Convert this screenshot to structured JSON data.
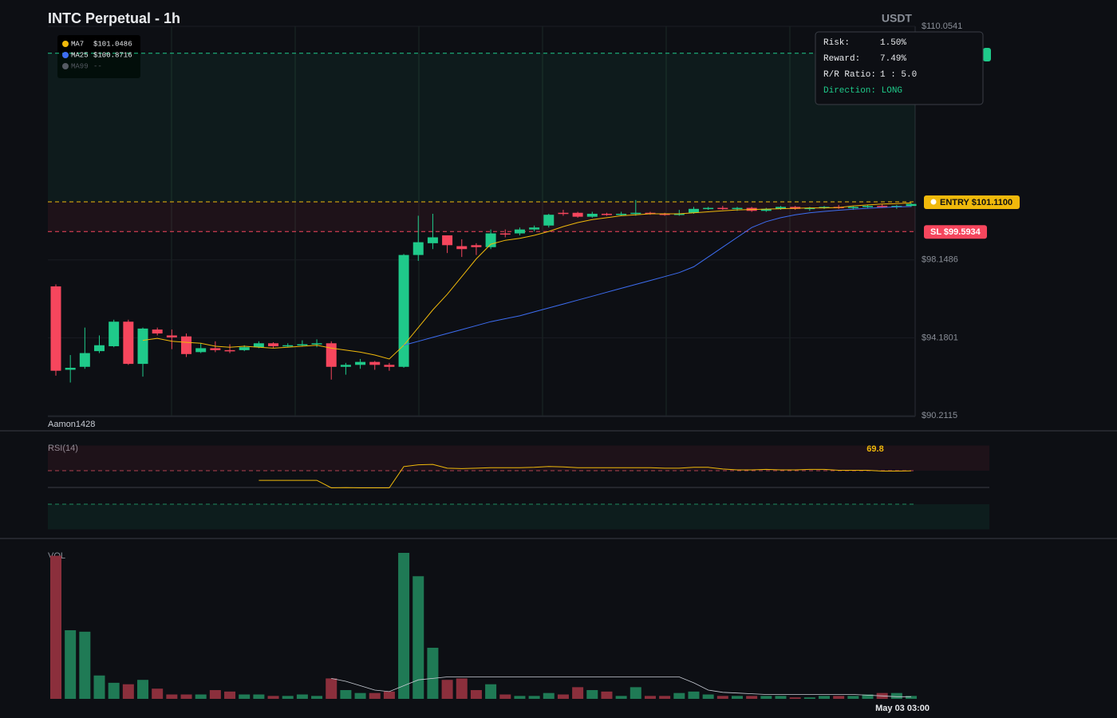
{
  "title": "INTC Perpetual - 1h",
  "quote": "USDT",
  "watermark": "Aamon1428",
  "risk_panel": {
    "rows": [
      {
        "label": "Risk:",
        "value": "1.50%"
      },
      {
        "label": "Reward:",
        "value": "7.49%"
      },
      {
        "label": "R/R Ratio:",
        "value": "1 : 5.0"
      }
    ],
    "direction": "Direction: LONG"
  },
  "chart_data": [
    {
      "type": "candlestick",
      "x_label": "May 03 03:00",
      "up_color": "#1fca8a",
      "down_color": "#f6465d",
      "ylim": [
        90.2115,
        110.0541
      ],
      "yticks": [
        {
          "value": 90.2115,
          "label": "$90.2115"
        },
        {
          "value": 94.1801,
          "label": "$94.1801"
        },
        {
          "value": 98.1486,
          "label": "$98.1486"
        },
        {
          "value": 110.0541,
          "label": "$110.0541"
        }
      ],
      "grid": true,
      "entry": {
        "label": "ENTRY $101.1100",
        "value": 101.11,
        "color": "#f0b90b"
      },
      "stop_loss": {
        "label": "SL $99.5934",
        "value": 99.5934,
        "color": "#f6465d"
      },
      "take_profit": {
        "value": 108.68,
        "color": "#1fca8a"
      },
      "open": [
        96.8,
        92.55,
        92.7,
        93.5,
        93.75,
        95.0,
        92.85,
        94.6,
        94.3,
        94.25,
        93.45,
        93.65,
        93.55,
        93.55,
        93.7,
        93.9,
        93.75,
        93.8,
        93.85,
        93.9,
        92.7,
        92.8,
        92.95,
        92.8,
        92.7,
        98.4,
        99.0,
        99.4,
        98.85,
        98.9,
        98.8,
        99.5,
        99.5,
        99.7,
        99.9,
        100.55,
        100.55,
        100.35,
        100.5,
        100.45,
        100.5,
        100.55,
        100.5,
        100.45,
        100.55,
        100.75,
        100.8,
        100.75,
        100.8,
        100.65,
        100.75,
        100.85,
        100.75,
        100.8,
        100.85,
        100.8,
        100.85,
        100.9,
        100.85,
        100.9
      ],
      "high": [
        96.9,
        93.3,
        94.7,
        94.3,
        95.1,
        95.1,
        94.7,
        94.7,
        94.6,
        94.4,
        93.9,
        94.0,
        93.85,
        93.8,
        94.0,
        93.95,
        93.9,
        94.05,
        94.1,
        94.0,
        92.9,
        93.1,
        93.0,
        92.9,
        98.45,
        100.4,
        100.5,
        99.4,
        99.2,
        99.0,
        99.7,
        99.7,
        99.8,
        99.9,
        100.5,
        100.7,
        100.6,
        100.6,
        100.55,
        100.6,
        101.2,
        100.6,
        100.55,
        100.7,
        100.85,
        100.85,
        100.9,
        100.85,
        100.85,
        100.8,
        100.9,
        100.9,
        100.85,
        100.9,
        100.95,
        100.9,
        100.95,
        101.0,
        100.95,
        101.05
      ],
      "low": [
        92.25,
        91.9,
        92.6,
        93.4,
        93.7,
        92.8,
        92.2,
        94.3,
        93.6,
        93.2,
        93.4,
        93.45,
        93.4,
        93.5,
        93.65,
        93.65,
        93.7,
        93.75,
        93.7,
        92.05,
        92.3,
        92.6,
        92.55,
        92.5,
        92.65,
        98.1,
        98.7,
        98.5,
        98.3,
        98.4,
        98.7,
        99.3,
        99.4,
        99.6,
        99.8,
        100.4,
        100.3,
        100.3,
        100.4,
        100.4,
        100.4,
        100.45,
        100.4,
        100.4,
        100.5,
        100.7,
        100.7,
        100.65,
        100.6,
        100.6,
        100.7,
        100.7,
        100.65,
        100.75,
        100.75,
        100.7,
        100.8,
        100.8,
        100.75,
        100.85
      ],
      "close": [
        92.5,
        92.65,
        93.4,
        93.8,
        95.0,
        92.85,
        94.65,
        94.4,
        94.2,
        93.35,
        93.65,
        93.55,
        93.5,
        93.7,
        93.9,
        93.75,
        93.8,
        93.85,
        93.9,
        92.7,
        92.8,
        92.95,
        92.8,
        92.7,
        98.4,
        99.05,
        99.3,
        98.9,
        98.7,
        98.8,
        99.5,
        99.45,
        99.7,
        99.8,
        100.45,
        100.5,
        100.35,
        100.5,
        100.45,
        100.5,
        100.55,
        100.5,
        100.45,
        100.5,
        100.75,
        100.8,
        100.75,
        100.8,
        100.65,
        100.75,
        100.85,
        100.75,
        100.8,
        100.85,
        100.8,
        100.85,
        100.9,
        100.85,
        100.9,
        101.0
      ],
      "series": [
        {
          "name": "MA7",
          "legend_value": "$101.0486",
          "color": "#f0b90b",
          "values": [
            null,
            null,
            null,
            null,
            null,
            null,
            94.05,
            94.15,
            94.0,
            93.95,
            93.9,
            93.75,
            93.7,
            93.75,
            93.7,
            93.65,
            93.7,
            93.75,
            93.8,
            93.65,
            93.55,
            93.45,
            93.3,
            93.1,
            93.8,
            94.7,
            95.6,
            96.4,
            97.3,
            98.2,
            98.95,
            99.15,
            99.25,
            99.4,
            99.6,
            99.85,
            100.05,
            100.2,
            100.3,
            100.4,
            100.45,
            100.5,
            100.5,
            100.5,
            100.55,
            100.6,
            100.65,
            100.7,
            100.72,
            100.74,
            100.76,
            100.78,
            100.8,
            100.8,
            100.82,
            100.9,
            100.95,
            101.0,
            101.02,
            101.05
          ]
        },
        {
          "name": "MA25",
          "legend_value": "$100.8716",
          "color": "#3d6df2",
          "values": [
            null,
            null,
            null,
            null,
            null,
            null,
            null,
            null,
            null,
            null,
            null,
            null,
            null,
            null,
            null,
            null,
            null,
            null,
            null,
            null,
            null,
            null,
            null,
            null,
            93.8,
            94.0,
            94.2,
            94.4,
            94.6,
            94.8,
            95.0,
            95.15,
            95.3,
            95.5,
            95.7,
            95.9,
            96.1,
            96.3,
            96.5,
            96.7,
            96.9,
            97.1,
            97.3,
            97.5,
            97.8,
            98.3,
            98.8,
            99.3,
            99.8,
            100.1,
            100.3,
            100.45,
            100.55,
            100.62,
            100.68,
            100.73,
            100.78,
            100.82,
            100.85,
            100.87
          ]
        },
        {
          "name": "MA99",
          "legend_value": "--",
          "color": "#555a63"
        }
      ]
    },
    {
      "type": "line",
      "title": "RSI(14)",
      "ylim": [
        0,
        100
      ],
      "levels": [
        70,
        50,
        30
      ],
      "color": "#f0b90b",
      "last_value_label": "69.8",
      "values": [
        null,
        null,
        null,
        null,
        null,
        null,
        null,
        null,
        null,
        null,
        null,
        null,
        null,
        null,
        58.5,
        58.5,
        58.5,
        58.5,
        58.5,
        49.5,
        49.8,
        49.5,
        49.5,
        49.5,
        75,
        77,
        77.5,
        73,
        72.5,
        73,
        73.5,
        73.5,
        73.5,
        74,
        75,
        74.5,
        73.5,
        73.5,
        73.5,
        73.5,
        73.5,
        73.5,
        73,
        73,
        74,
        74,
        72,
        71,
        71,
        71.5,
        71,
        71,
        71.5,
        71.5,
        70.5,
        70.5,
        70.5,
        69.5,
        69.5,
        69.8
      ]
    },
    {
      "type": "bar",
      "title": "VOL",
      "ylim": [
        0,
        100
      ],
      "up_color": "#1f7a55",
      "down_color": "#8b2f3c",
      "ma_color": "#c8ccd4",
      "values": [
        98,
        47,
        46,
        16,
        11,
        10,
        13,
        7,
        3,
        3,
        3,
        6,
        5,
        3,
        3,
        2,
        2,
        3,
        2,
        14,
        6,
        4,
        4,
        5,
        100,
        84,
        35,
        13,
        14,
        6,
        10,
        3,
        2,
        2,
        4,
        3,
        8,
        6,
        5,
        2,
        8,
        2,
        2,
        4,
        5,
        3,
        2,
        2,
        2,
        2,
        2,
        1,
        1,
        2,
        2,
        2,
        3,
        4,
        4,
        2
      ],
      "ma_values": [
        null,
        null,
        null,
        null,
        null,
        null,
        null,
        null,
        null,
        null,
        null,
        null,
        null,
        null,
        null,
        null,
        null,
        null,
        null,
        14,
        12,
        9,
        6,
        5,
        9,
        13,
        14,
        15,
        15,
        15,
        15,
        15,
        15,
        15,
        15,
        15,
        15,
        15,
        15,
        15,
        15,
        15,
        15,
        15,
        11,
        6,
        4.5,
        4,
        3.5,
        3,
        3,
        3,
        3,
        3,
        3,
        3,
        2.5,
        2,
        1.5,
        1.5
      ]
    }
  ]
}
